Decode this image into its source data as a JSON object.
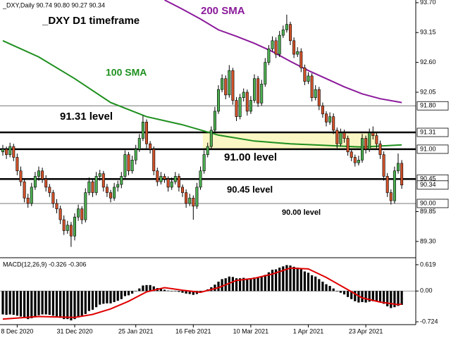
{
  "header": "_DXY,Daily  90.74 90.80 90.27 90.34",
  "chart_data": [
    {
      "type": "candlestick",
      "ylim": [
        89.0,
        93.75
      ],
      "yticks": [
        {
          "value": 93.7,
          "label": "93.70"
        },
        93.15,
        {
          "value": 92.6,
          "label": "92.60"
        },
        92.05,
        89.85,
        {
          "value": 89.3,
          "label": "89.30"
        }
      ],
      "xticks": [
        {
          "value": 4,
          "label": "8 Dec 2020"
        },
        {
          "value": 20,
          "label": "31 Dec 2020"
        },
        {
          "value": 37,
          "label": "25 Jan 2021"
        },
        {
          "value": 53,
          "label": "16 Feb 2021"
        },
        {
          "value": 69,
          "label": "10 Mar 2021"
        },
        {
          "value": 85,
          "label": "1 Apr 2021"
        },
        {
          "value": 101,
          "label": "23 Apr 2021"
        }
      ],
      "up_color": "#4caf50",
      "down_color": "#d2522a",
      "levels": [
        {
          "value": 91.8,
          "label": "91.80",
          "style": "thin"
        },
        {
          "value": 91.31,
          "label": "91.31",
          "style": "thick"
        },
        {
          "value": 91,
          "label": "91.00",
          "style": "thick"
        },
        {
          "value": 90.45,
          "label": "90.45",
          "style": "thick"
        },
        {
          "value": 90.34,
          "label": "90.34",
          "style": "none"
        },
        {
          "value": 90,
          "label": "90.00",
          "style": "thin"
        }
      ],
      "annotations": [
        {
          "text": "_DXY D1 timeframe",
          "color": "#000000"
        },
        {
          "text": "200 SMA",
          "color": "#8b1a9b"
        },
        {
          "text": "100 SMA",
          "color": "#1e8f1e"
        },
        {
          "text": "91.31 level",
          "color": "#000000"
        },
        {
          "text": "91.00 level",
          "color": "#000000"
        },
        {
          "text": "90.45 level",
          "color": "#000000"
        },
        {
          "text": "90.00 level",
          "color": "#000000"
        }
      ],
      "lines": [
        {
          "name": "100 SMA",
          "color": "#1e8f1e",
          "x": [
            0,
            10,
            20,
            30,
            40,
            50,
            60,
            70,
            80,
            90,
            100,
            111
          ],
          "values": [
            93.0,
            92.7,
            92.3,
            91.86,
            91.6,
            91.45,
            91.26,
            91.15,
            91.1,
            91.07,
            91.04,
            91.08
          ]
        },
        {
          "name": "200 SMA",
          "color": "#8b1a9b",
          "x": [
            45,
            50,
            55,
            60,
            65,
            70,
            75,
            80,
            85,
            90,
            95,
            100,
            105,
            111
          ],
          "values": [
            93.75,
            93.58,
            93.4,
            93.2,
            93.08,
            92.95,
            92.8,
            92.62,
            92.45,
            92.3,
            92.15,
            92.02,
            91.93,
            91.86
          ]
        }
      ],
      "candles": [
        [
          90.95,
          91.08,
          90.88,
          91.0
        ],
        [
          91.0,
          91.05,
          90.82,
          90.9
        ],
        [
          90.9,
          91.12,
          90.85,
          91.05
        ],
        [
          91.05,
          91.1,
          90.78,
          90.85
        ],
        [
          90.85,
          90.92,
          90.52,
          90.6
        ],
        [
          90.6,
          90.68,
          90.32,
          90.4
        ],
        [
          90.4,
          90.45,
          90.02,
          90.1
        ],
        [
          90.1,
          90.18,
          89.92,
          90.0
        ],
        [
          90.0,
          90.38,
          89.95,
          90.3
        ],
        [
          90.3,
          90.58,
          90.25,
          90.5
        ],
        [
          90.5,
          90.68,
          90.42,
          90.6
        ],
        [
          90.6,
          90.66,
          90.38,
          90.45
        ],
        [
          90.45,
          90.52,
          90.22,
          90.3
        ],
        [
          90.3,
          90.36,
          90.12,
          90.2
        ],
        [
          90.2,
          90.25,
          89.92,
          90.0
        ],
        [
          90.0,
          90.08,
          89.82,
          89.9
        ],
        [
          89.9,
          89.96,
          89.62,
          89.7
        ],
        [
          89.7,
          89.78,
          89.42,
          89.5
        ],
        [
          89.5,
          89.68,
          89.44,
          89.6
        ],
        [
          89.6,
          89.66,
          89.2,
          89.4
        ],
        [
          89.4,
          89.82,
          89.32,
          89.75
        ],
        [
          89.75,
          89.98,
          89.68,
          89.9
        ],
        [
          89.9,
          89.95,
          89.62,
          89.7
        ],
        [
          89.7,
          90.28,
          89.65,
          90.2
        ],
        [
          90.2,
          90.48,
          90.15,
          90.4
        ],
        [
          90.4,
          90.45,
          90.12,
          90.2
        ],
        [
          90.2,
          90.58,
          90.15,
          90.5
        ],
        [
          90.5,
          90.62,
          90.42,
          90.55
        ],
        [
          90.55,
          90.6,
          90.22,
          90.3
        ],
        [
          90.3,
          90.36,
          90.12,
          90.2
        ],
        [
          90.2,
          90.25,
          90.02,
          90.1
        ],
        [
          90.1,
          90.38,
          90.05,
          90.3
        ],
        [
          90.3,
          90.42,
          90.22,
          90.35
        ],
        [
          90.35,
          90.58,
          90.28,
          90.5
        ],
        [
          90.5,
          90.98,
          90.45,
          90.9
        ],
        [
          90.9,
          90.95,
          90.52,
          90.6
        ],
        [
          90.6,
          90.88,
          90.55,
          90.8
        ],
        [
          90.8,
          91.08,
          90.72,
          91.0
        ],
        [
          91.0,
          91.28,
          90.95,
          91.2
        ],
        [
          91.2,
          91.62,
          91.15,
          91.5
        ],
        [
          91.5,
          91.55,
          91.02,
          91.1
        ],
        [
          91.1,
          91.15,
          90.92,
          91.0
        ],
        [
          91.0,
          91.05,
          90.52,
          90.6
        ],
        [
          90.6,
          90.66,
          90.32,
          90.4
        ],
        [
          90.4,
          90.58,
          90.35,
          90.5
        ],
        [
          90.5,
          90.55,
          90.38,
          90.45
        ],
        [
          90.45,
          90.5,
          90.22,
          90.3
        ],
        [
          90.3,
          90.48,
          90.25,
          90.4
        ],
        [
          90.4,
          90.58,
          90.35,
          90.5
        ],
        [
          90.5,
          90.55,
          90.22,
          90.3
        ],
        [
          90.3,
          90.35,
          90.12,
          90.2
        ],
        [
          90.2,
          90.26,
          89.92,
          90.0
        ],
        [
          90.0,
          90.18,
          89.95,
          90.1
        ],
        [
          90.1,
          90.15,
          89.7,
          89.95
        ],
        [
          89.95,
          90.38,
          89.9,
          90.3
        ],
        [
          90.3,
          90.68,
          90.25,
          90.6
        ],
        [
          90.6,
          90.98,
          90.55,
          90.9
        ],
        [
          90.9,
          91.12,
          90.85,
          91.05
        ],
        [
          91.05,
          91.42,
          91.0,
          91.35
        ],
        [
          91.35,
          91.78,
          91.3,
          91.7
        ],
        [
          91.7,
          92.18,
          91.65,
          92.1
        ],
        [
          92.1,
          92.38,
          92.05,
          92.3
        ],
        [
          92.3,
          92.36,
          91.92,
          92.0
        ],
        [
          92.0,
          92.55,
          91.95,
          92.45
        ],
        [
          92.45,
          92.5,
          91.82,
          91.9
        ],
        [
          91.9,
          91.96,
          91.52,
          91.6
        ],
        [
          91.6,
          92.02,
          91.55,
          91.95
        ],
        [
          91.95,
          92.12,
          91.88,
          92.05
        ],
        [
          92.05,
          92.1,
          91.62,
          91.7
        ],
        [
          91.7,
          91.98,
          91.65,
          91.9
        ],
        [
          91.9,
          92.38,
          91.85,
          92.3
        ],
        [
          92.3,
          92.35,
          91.78,
          91.85
        ],
        [
          91.85,
          92.28,
          91.8,
          92.2
        ],
        [
          92.2,
          92.68,
          92.15,
          92.6
        ],
        [
          92.6,
          92.92,
          92.55,
          92.85
        ],
        [
          92.85,
          93.08,
          92.8,
          93.0
        ],
        [
          93.0,
          93.06,
          92.68,
          92.75
        ],
        [
          92.75,
          93.18,
          92.7,
          93.1
        ],
        [
          93.1,
          93.28,
          93.05,
          93.2
        ],
        [
          93.2,
          93.48,
          93.15,
          93.3
        ],
        [
          93.3,
          93.35,
          92.92,
          93.0
        ],
        [
          93.0,
          93.06,
          92.68,
          92.75
        ],
        [
          92.75,
          92.88,
          92.7,
          92.8
        ],
        [
          92.8,
          92.86,
          92.42,
          92.5
        ],
        [
          92.5,
          92.56,
          92.18,
          92.25
        ],
        [
          92.25,
          92.42,
          92.2,
          92.35
        ],
        [
          92.35,
          92.4,
          91.88,
          91.95
        ],
        [
          91.95,
          92.18,
          91.9,
          92.1
        ],
        [
          92.1,
          92.15,
          91.72,
          91.8
        ],
        [
          91.8,
          91.86,
          91.58,
          91.65
        ],
        [
          91.65,
          91.7,
          91.42,
          91.5
        ],
        [
          91.5,
          91.68,
          91.45,
          91.6
        ],
        [
          91.6,
          91.66,
          91.28,
          91.35
        ],
        [
          91.35,
          91.4,
          91.02,
          91.1
        ],
        [
          91.1,
          91.38,
          91.05,
          91.3
        ],
        [
          91.3,
          91.36,
          91.12,
          91.2
        ],
        [
          91.2,
          91.25,
          90.88,
          90.95
        ],
        [
          90.95,
          91.0,
          90.78,
          90.85
        ],
        [
          90.85,
          90.9,
          90.68,
          90.75
        ],
        [
          90.75,
          90.88,
          90.7,
          90.8
        ],
        [
          90.8,
          91.28,
          90.75,
          91.2
        ],
        [
          91.2,
          91.25,
          90.92,
          91.0
        ],
        [
          91.0,
          91.38,
          90.95,
          91.3
        ],
        [
          91.3,
          91.42,
          91.18,
          91.25
        ],
        [
          91.25,
          91.3,
          91.02,
          91.1
        ],
        [
          91.1,
          91.16,
          90.82,
          90.9
        ],
        [
          90.9,
          90.96,
          90.42,
          90.5
        ],
        [
          90.5,
          90.56,
          90.12,
          90.2
        ],
        [
          90.2,
          90.26,
          89.98,
          90.05
        ],
        [
          90.05,
          90.68,
          90.0,
          90.6
        ],
        [
          90.6,
          90.92,
          90.55,
          90.74
        ],
        [
          90.74,
          90.8,
          90.27,
          90.34
        ]
      ]
    },
    {
      "type": "macd",
      "title": "MACD(12,26,9) -0.326 -0.306",
      "ylim": [
        -0.79,
        0.75
      ],
      "yticks": [
        0.619,
        {
          "value": 0,
          "label": "0.00"
        },
        -0.724
      ],
      "color": "#000000",
      "values": [
        -0.55,
        -0.56,
        -0.55,
        -0.56,
        -0.58,
        -0.6,
        -0.63,
        -0.66,
        -0.64,
        -0.6,
        -0.57,
        -0.55,
        -0.55,
        -0.56,
        -0.58,
        -0.6,
        -0.63,
        -0.66,
        -0.66,
        -0.69,
        -0.66,
        -0.62,
        -0.6,
        -0.54,
        -0.47,
        -0.44,
        -0.38,
        -0.32,
        -0.3,
        -0.29,
        -0.29,
        -0.26,
        -0.23,
        -0.19,
        -0.12,
        -0.1,
        -0.06,
        0.0,
        0.06,
        0.13,
        0.14,
        0.14,
        0.11,
        0.07,
        0.05,
        0.03,
        0.01,
        0.0,
        0.0,
        -0.02,
        -0.04,
        -0.06,
        -0.07,
        -0.09,
        -0.07,
        -0.04,
        0.0,
        0.04,
        0.09,
        0.15,
        0.22,
        0.28,
        0.3,
        0.34,
        0.33,
        0.3,
        0.3,
        0.31,
        0.29,
        0.29,
        0.32,
        0.31,
        0.33,
        0.38,
        0.44,
        0.5,
        0.51,
        0.55,
        0.58,
        0.61,
        0.6,
        0.57,
        0.55,
        0.51,
        0.46,
        0.43,
        0.37,
        0.34,
        0.28,
        0.22,
        0.16,
        0.12,
        0.06,
        -0.01,
        -0.04,
        -0.08,
        -0.14,
        -0.19,
        -0.24,
        -0.27,
        -0.26,
        -0.27,
        -0.25,
        -0.24,
        -0.24,
        -0.26,
        -0.3,
        -0.36,
        -0.4,
        -0.38,
        -0.35,
        -0.326
      ],
      "signal": {
        "color": "#e00000",
        "x": [
          0,
          10,
          20,
          25,
          30,
          35,
          40,
          45,
          50,
          55,
          60,
          65,
          70,
          75,
          80,
          85,
          90,
          95,
          100,
          105,
          110,
          111
        ],
        "values": [
          -0.66,
          -0.6,
          -0.62,
          -0.55,
          -0.42,
          -0.24,
          -0.02,
          0.08,
          0.02,
          -0.03,
          0.08,
          0.25,
          0.3,
          0.4,
          0.54,
          0.52,
          0.32,
          0.08,
          -0.16,
          -0.26,
          -0.32,
          -0.306
        ]
      }
    }
  ]
}
